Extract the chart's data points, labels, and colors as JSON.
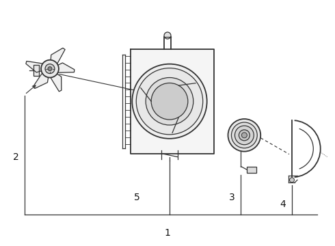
{
  "bg_color": "#ffffff",
  "line_color": "#333333",
  "label_color": "#111111",
  "figure_width": 4.9,
  "figure_height": 3.6,
  "dpi": 100,
  "label_fontsize": 10
}
